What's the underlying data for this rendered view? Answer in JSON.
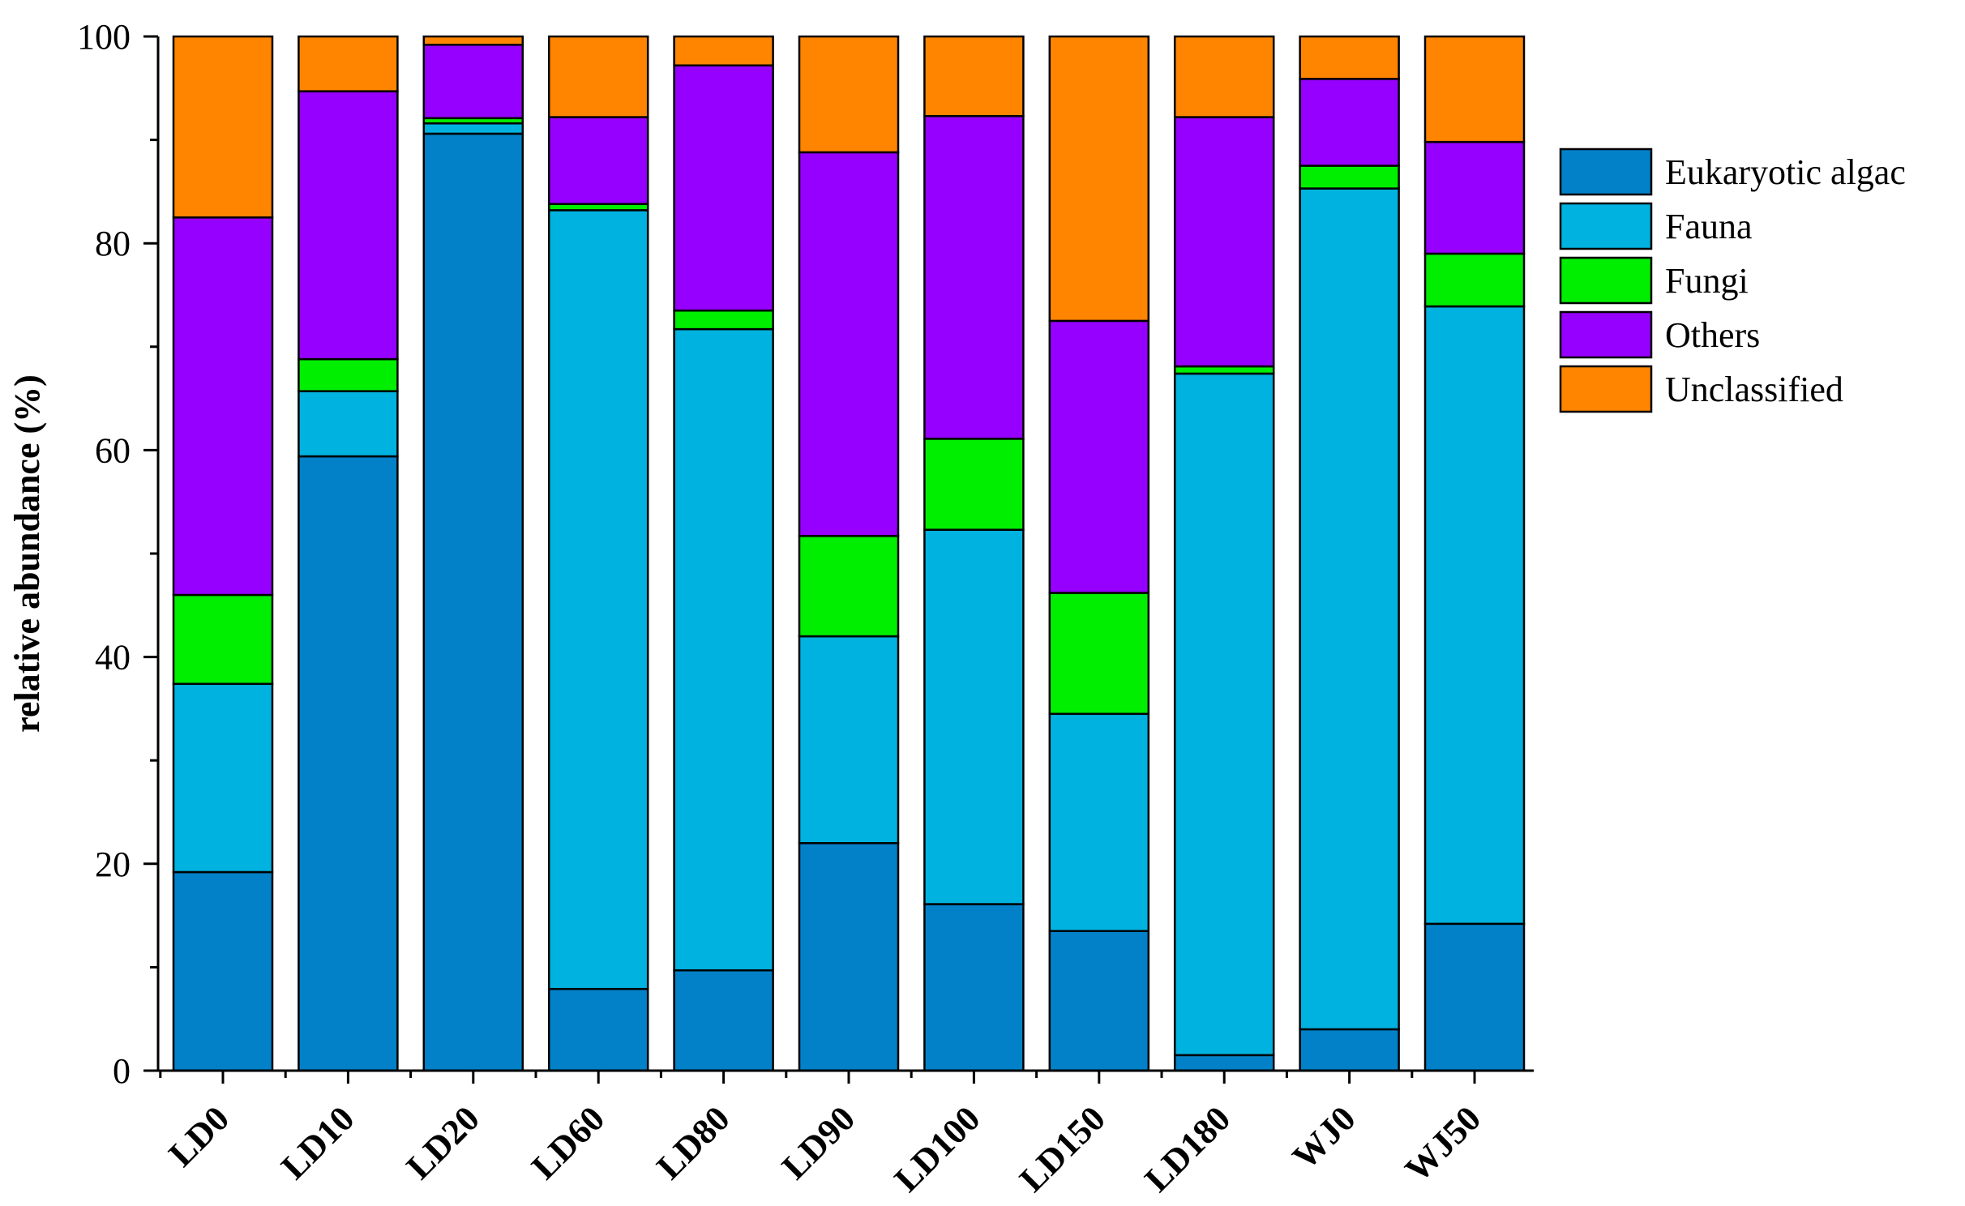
{
  "chart_data": {
    "type": "bar",
    "stacked": true,
    "title": "",
    "xlabel": "",
    "ylabel": "relative abundance (%)",
    "ylim": [
      0,
      100
    ],
    "yticks": [
      0,
      20,
      40,
      60,
      80,
      100
    ],
    "yticks_minor": [
      10,
      30,
      50,
      70,
      90
    ],
    "legend_position": "right",
    "categories": [
      "LD0",
      "LD10",
      "LD20",
      "LD60",
      "LD80",
      "LD90",
      "LD100",
      "LD150",
      "LD180",
      "WJ0",
      "WJ50"
    ],
    "series": [
      {
        "name": "Eukaryotic algac",
        "color": "#0281C8",
        "values": [
          19.2,
          59.4,
          90.6,
          7.9,
          9.7,
          22.0,
          16.1,
          13.5,
          1.5,
          4.0,
          14.2
        ]
      },
      {
        "name": "Fauna",
        "color": "#00B2DF",
        "values": [
          18.2,
          6.3,
          1.0,
          75.3,
          62.0,
          20.0,
          36.2,
          21.0,
          65.9,
          81.3,
          59.7
        ]
      },
      {
        "name": "Fungi",
        "color": "#00EE00",
        "values": [
          8.6,
          3.1,
          0.5,
          0.6,
          1.8,
          9.7,
          8.8,
          11.7,
          0.7,
          2.2,
          5.1
        ]
      },
      {
        "name": "Others",
        "color": "#9600FF",
        "values": [
          36.5,
          25.9,
          7.1,
          8.4,
          23.7,
          37.1,
          31.2,
          26.3,
          24.1,
          8.4,
          10.8
        ]
      },
      {
        "name": "Unclassified",
        "color": "#FF8400",
        "values": [
          17.5,
          5.3,
          0.8,
          7.8,
          2.8,
          11.2,
          7.7,
          27.5,
          7.8,
          4.1,
          10.2
        ]
      }
    ]
  }
}
